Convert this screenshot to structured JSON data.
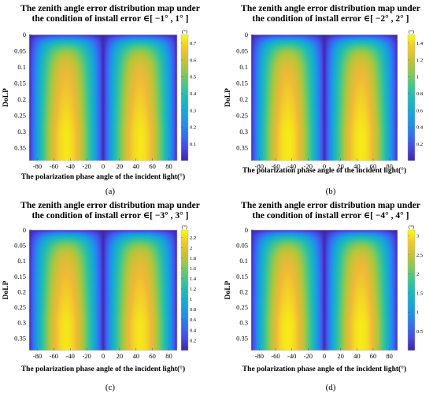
{
  "figure": {
    "accent_colors": {
      "low": "#3f26c8",
      "mid": "#22b0b9",
      "high": "#f5e21c"
    }
  },
  "chart_data": [
    {
      "type": "heatmap",
      "caption": "(a)",
      "title_line1": "The zenith angle error distribution map under",
      "title_line2": "the condition of install error ∈[ −1° , 1° ]",
      "xlabel": "The polarization phase angle of the incident light(°)",
      "ylabel": "DoLP",
      "xlim": [
        -90,
        90
      ],
      "ylim": [
        0,
        0.39
      ],
      "y_inverted": true,
      "x_ticks": [
        "-80",
        "-60",
        "-40",
        "-20",
        "0",
        "20",
        "40",
        "60",
        "80"
      ],
      "y_ticks": [
        "0",
        "0.05",
        "0.1",
        "0.15",
        "0.2",
        "0.25",
        "0.3",
        "0.35"
      ],
      "colorbar": {
        "unit": "(°)",
        "range": [
          0,
          0.75
        ],
        "ticks": [
          "0.1",
          "0.2",
          "0.3",
          "0.4",
          "0.5",
          "0.6",
          "0.7"
        ]
      },
      "pattern": {
        "peak_x": [
          -67.5,
          -22.5,
          22.5,
          67.5
        ],
        "min_x": [
          -90,
          -45,
          0,
          45,
          90
        ],
        "max_value": 0.72,
        "max_value_at_dolp_0": 0.02
      }
    },
    {
      "type": "heatmap",
      "caption": "(b)",
      "title_line1": "The zenith angle error distribution map under",
      "title_line2": "the condition of install error ∈[ −2° , 2° ]",
      "xlabel": "The polarization phase angle of the incident light(°)",
      "ylabel": "DoLP",
      "xlim": [
        -90,
        90
      ],
      "ylim": [
        0,
        0.39
      ],
      "y_inverted": true,
      "x_ticks": [
        "-80",
        "-60",
        "-40",
        "-20",
        "0",
        "20",
        "40",
        "60",
        "80"
      ],
      "y_ticks": [
        "0",
        "0.05",
        "0.1",
        "0.15",
        "0.2",
        "0.25",
        "0.3",
        "0.35"
      ],
      "colorbar": {
        "unit": "(°)",
        "range": [
          0,
          1.5
        ],
        "ticks": [
          "0.2",
          "0.4",
          "0.6",
          "0.8",
          "1",
          "1.2",
          "1.4"
        ]
      },
      "pattern": {
        "peak_x": [
          -67.5,
          -22.5,
          22.5,
          67.5
        ],
        "min_x": [
          -90,
          -45,
          0,
          45,
          90
        ],
        "max_value": 1.45,
        "max_value_at_dolp_0": 0.04
      }
    },
    {
      "type": "heatmap",
      "caption": "(c)",
      "title_line1": "The zenith angle error distribution map under",
      "title_line2": "the condition of install error ∈[ −3° , 3° ]",
      "xlabel": "The polarization phase angle of the incident light(°)",
      "ylabel": "DoLP",
      "xlim": [
        -90,
        90
      ],
      "ylim": [
        0,
        0.39
      ],
      "y_inverted": true,
      "x_ticks": [
        "-80",
        "-60",
        "-40",
        "-20",
        "0",
        "20",
        "40",
        "60",
        "80"
      ],
      "y_ticks": [
        "0",
        "0.05",
        "0.1",
        "0.15",
        "0.2",
        "0.25",
        "0.3",
        "0.35"
      ],
      "colorbar": {
        "unit": "(°)",
        "range": [
          0,
          2.35
        ],
        "ticks": [
          "0.2",
          "0.4",
          "0.6",
          "0.8",
          "1",
          "1.2",
          "1.4",
          "1.6",
          "1.8",
          "2",
          "2.2"
        ]
      },
      "pattern": {
        "peak_x": [
          -67.5,
          -22.5,
          22.5,
          67.5
        ],
        "min_x": [
          -90,
          -45,
          0,
          45,
          90
        ],
        "max_value": 2.25,
        "max_value_at_dolp_0": 0.06
      }
    },
    {
      "type": "heatmap",
      "caption": "(d)",
      "title_line1": "The zenith angle error distribution map under",
      "title_line2": "the condition of install error ∈[ −4° , 4° ]",
      "xlabel": "The polarization phase angle of the incident light(°)",
      "ylabel": "DoLP",
      "xlim": [
        -90,
        90
      ],
      "ylim": [
        0,
        0.39
      ],
      "y_inverted": true,
      "x_ticks": [
        "-80",
        "-60",
        "-40",
        "-20",
        "0",
        "20",
        "40",
        "60",
        "80"
      ],
      "y_ticks": [
        "0",
        "0.05",
        "0.1",
        "0.15",
        "0.2",
        "0.25",
        "0.3",
        "0.35"
      ],
      "colorbar": {
        "unit": "(°)",
        "range": [
          0,
          3.15
        ],
        "ticks": [
          "0.5",
          "1",
          "1.5",
          "2",
          "2.5",
          "3"
        ]
      },
      "pattern": {
        "peak_x": [
          -67.5,
          -22.5,
          22.5,
          67.5
        ],
        "min_x": [
          -90,
          -45,
          0,
          45,
          90
        ],
        "max_value": 3.05,
        "max_value_at_dolp_0": 0.08
      }
    }
  ]
}
